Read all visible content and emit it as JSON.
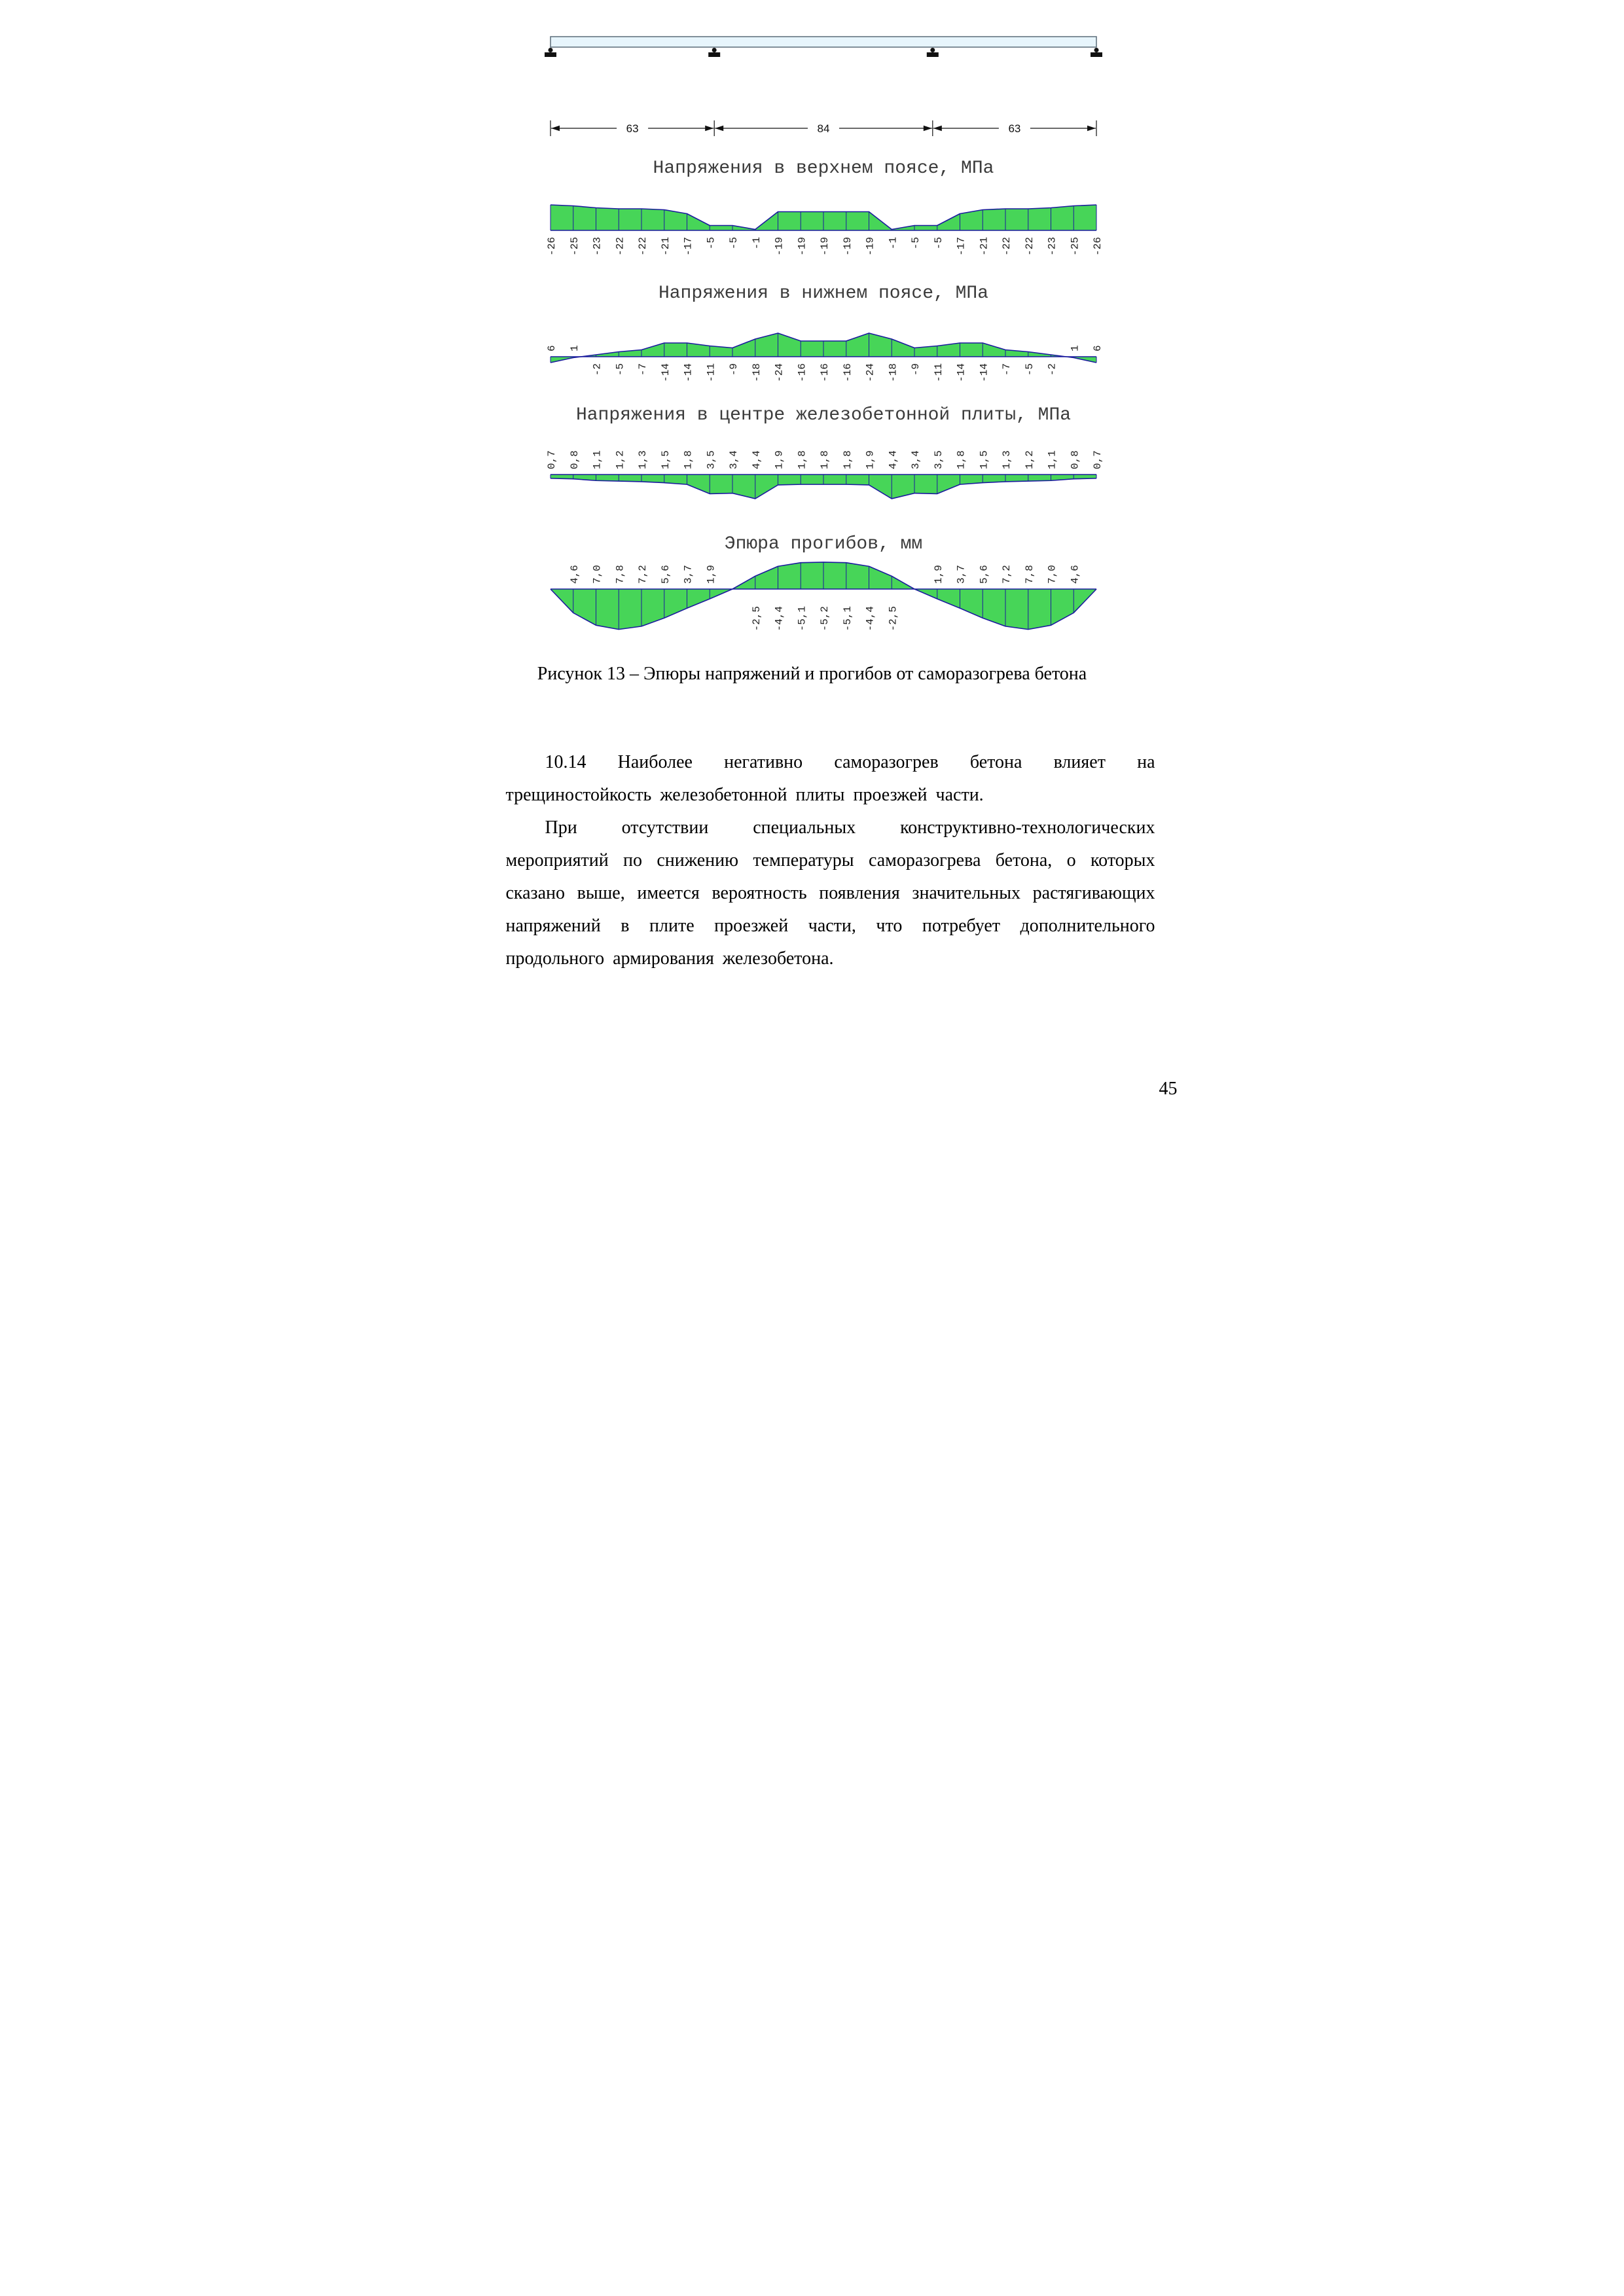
{
  "page": {
    "number": "45"
  },
  "figure": {
    "caption": "Рисунок 13 – Эпюры напряжений и прогибов от саморазогрева бетона",
    "beam": {
      "supports": 4,
      "spans": [
        63,
        84,
        63
      ],
      "span_labels": [
        "63",
        "84",
        "63"
      ]
    }
  },
  "paragraphs": {
    "p1": "10.14 Наиболее негативно саморазогрев бетона влияет на трещиностойкость железобетонной плиты проезжей части.",
    "p2": "При отсутствии специальных конструктивно-технологических мероприятий по снижению температуры саморазогрева бетона, о которых сказано выше, имеется вероятность появления значительных растягивающих напряжений в плите проезжей части, что потребует дополнительного продольного армирования железобетона."
  },
  "colors": {
    "diagram_fill": "#47d558",
    "diagram_outline": "#1b1b9e",
    "beam_fill": "#e7f5fc"
  },
  "chart_data": [
    {
      "type": "area",
      "title": "Напряжения в верхнем поясе, МПа",
      "unit": "МПа",
      "baseline": "bottom",
      "label_side": "below",
      "values": [
        -26,
        -25,
        -23,
        -22,
        -22,
        -21,
        -17,
        -5,
        -5,
        -1,
        -19,
        -19,
        -19,
        -19,
        -19,
        -1,
        -5,
        -5,
        -17,
        -21,
        -22,
        -22,
        -23,
        -25,
        -26
      ],
      "labels": [
        "-26",
        "-25",
        "-23",
        "-22",
        "-22",
        "-21",
        "-17",
        "-5",
        "-5",
        "-1",
        "-19",
        "-19",
        "-19",
        "-19",
        "-19",
        "-1",
        "-5",
        "-5",
        "-17",
        "-21",
        "-22",
        "-22",
        "-23",
        "-25",
        "-26"
      ]
    },
    {
      "type": "area",
      "title": "Напряжения в нижнем поясе, МПа",
      "unit": "МПа",
      "baseline": "bottom",
      "label_side": "by-sign",
      "values": [
        6,
        1,
        -2,
        -5,
        -7,
        -14,
        -14,
        -11,
        -9,
        -18,
        -24,
        -16,
        -16,
        -16,
        -24,
        -18,
        -9,
        -11,
        -14,
        -14,
        -7,
        -5,
        -2,
        1,
        6
      ],
      "labels": [
        "6",
        "1",
        "-2",
        "-5",
        "-7",
        "-14",
        "-14",
        "-11",
        "-9",
        "-18",
        "-24",
        "-16",
        "-16",
        "-16",
        "-24",
        "-18",
        "-9",
        "-11",
        "-14",
        "-14",
        "-7",
        "-5",
        "-2",
        "1",
        "6"
      ]
    },
    {
      "type": "area",
      "title": "Напряжения в центре железобетонной плиты, МПа",
      "unit": "МПа",
      "baseline": "top",
      "label_side": "above",
      "values": [
        0.7,
        0.8,
        1.1,
        1.2,
        1.3,
        1.5,
        1.8,
        3.5,
        3.4,
        4.4,
        1.9,
        1.8,
        1.8,
        1.8,
        1.9,
        4.4,
        3.4,
        3.5,
        1.8,
        1.5,
        1.3,
        1.2,
        1.1,
        0.8,
        0.7
      ],
      "labels": [
        "0,7",
        "0,8",
        "1,1",
        "1,2",
        "1,3",
        "1,5",
        "1,8",
        "3,5",
        "3,4",
        "4,4",
        "1,9",
        "1,8",
        "1,8",
        "1,8",
        "1,9",
        "4,4",
        "3,4",
        "3,5",
        "1,8",
        "1,5",
        "1,3",
        "1,2",
        "1,1",
        "0,8",
        "0,7"
      ]
    },
    {
      "type": "area",
      "title": "Эпюра прогибов, мм",
      "unit": "мм",
      "baseline": "middle",
      "label_side": "by-sign",
      "values": [
        0,
        4.6,
        7.0,
        7.8,
        7.2,
        5.6,
        3.7,
        1.9,
        0,
        -2.5,
        -4.4,
        -5.1,
        -5.2,
        -5.1,
        -4.4,
        -2.5,
        0,
        1.9,
        3.7,
        5.6,
        7.2,
        7.8,
        7.0,
        4.6,
        0
      ],
      "labels": [
        "",
        "4,6",
        "7,0",
        "7,8",
        "7,2",
        "5,6",
        "3,7",
        "1,9",
        "",
        "-2,5",
        "-4,4",
        "-5,1",
        "-5,2",
        "-5,1",
        "-4,4",
        "-2,5",
        "",
        "1,9",
        "3,7",
        "5,6",
        "7,2",
        "7,8",
        "7,0",
        "4,6",
        ""
      ]
    }
  ]
}
